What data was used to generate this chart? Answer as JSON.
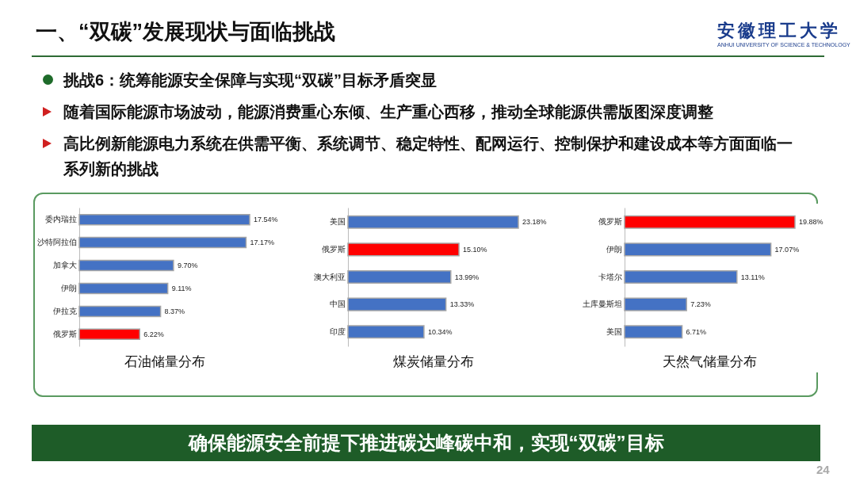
{
  "chart_data": [
    {
      "type": "other",
      "title": "一、“双碳”发展现状与面临挑战",
      "annotations": [
        "安徽理工大学",
        "ANHUI UNIVERSITY OF SCIENCE & TECHNOLOGY",
        "挑战6：统筹能源安全保障与实现“双碳”目标矛盾突显",
        "随着国际能源市场波动，能源消费重心东倾、生产重心西移，推动全球能源供需版图深度调整",
        "高比例新能源电力系统在供需平衡、系统调节、稳定特性、配网运行、控制保护和建设成本等方面面临一系列新的挑战",
        "确保能源安全前提下推进碳达峰碳中和，实现“双碳”目标",
        "24"
      ]
    },
    {
      "type": "bar",
      "orientation": "horizontal",
      "title": "石油储量分布",
      "categories": [
        "委内瑞拉",
        "沙特阿拉伯",
        "加拿大",
        "伊朗",
        "伊拉克",
        "俄罗斯"
      ],
      "values": [
        17.54,
        17.17,
        9.7,
        9.11,
        8.37,
        6.22
      ],
      "value_labels": [
        "17.54%",
        "17.17%",
        "9.70%",
        "9.11%",
        "8.37%",
        "6.22%"
      ],
      "colors": [
        "#4472c4",
        "#4472c4",
        "#4472c4",
        "#4472c4",
        "#4472c4",
        "#ff0000"
      ]
    },
    {
      "type": "bar",
      "orientation": "horizontal",
      "title": "煤炭储量分布",
      "categories": [
        "美国",
        "俄罗斯",
        "澳大利亚",
        "中国",
        "印度"
      ],
      "values": [
        23.18,
        15.1,
        13.99,
        13.33,
        10.34
      ],
      "value_labels": [
        "23.18%",
        "15.10%",
        "13.99%",
        "13.33%",
        "10.34%"
      ],
      "colors": [
        "#4472c4",
        "#ff0000",
        "#4472c4",
        "#4472c4",
        "#4472c4"
      ]
    },
    {
      "type": "bar",
      "orientation": "horizontal",
      "title": "天然气储量分布",
      "categories": [
        "俄罗斯",
        "伊朗",
        "卡塔尔",
        "土库曼斯坦",
        "美国"
      ],
      "values": [
        19.88,
        17.07,
        13.11,
        7.23,
        6.71
      ],
      "value_labels": [
        "19.88%",
        "17.07%",
        "13.11%",
        "7.23%",
        "6.71%"
      ],
      "colors": [
        "#ff0000",
        "#4472c4",
        "#4472c4",
        "#4472c4",
        "#4472c4"
      ]
    }
  ]
}
